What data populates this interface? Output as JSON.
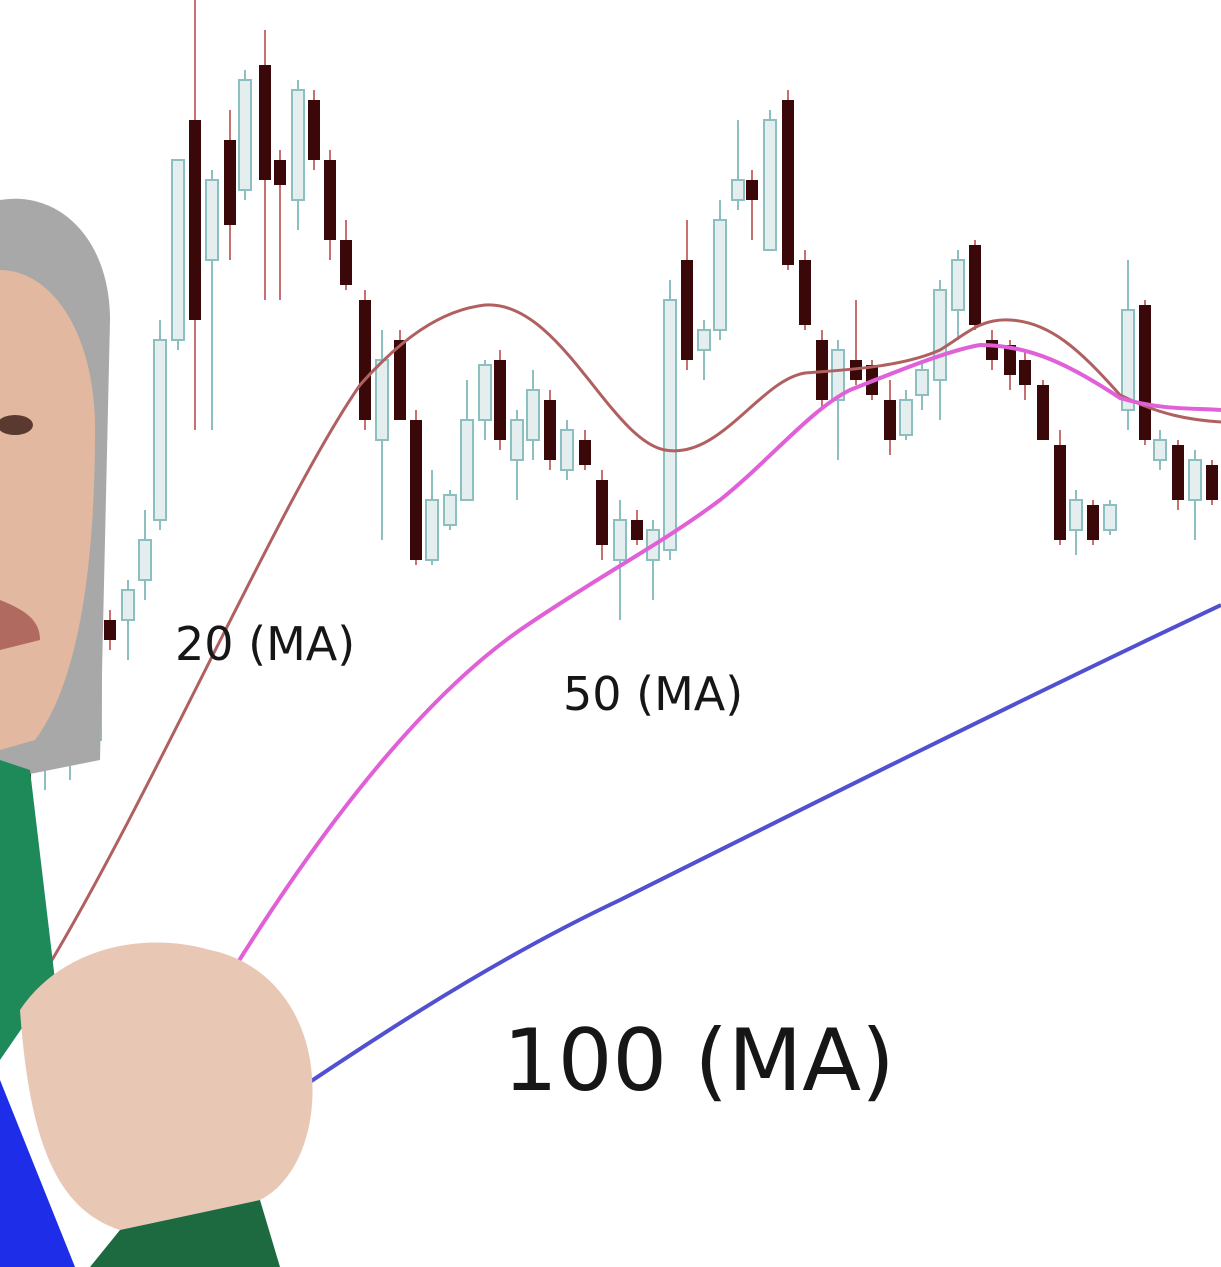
{
  "labels": [
    "20 (MA)",
    "50 (MA)",
    "100 (MA)"
  ]
}
